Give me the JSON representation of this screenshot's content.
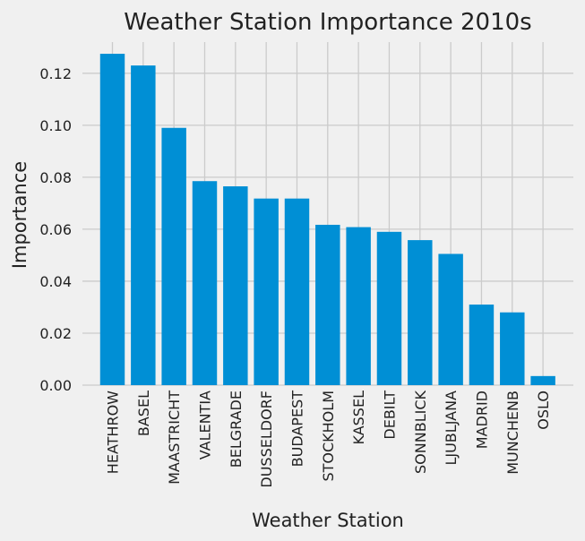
{
  "chart_data": {
    "type": "bar",
    "title": "Weather Station Importance 2010s",
    "xlabel": "Weather Station",
    "ylabel": "Importance",
    "categories": [
      "HEATHROW",
      "BASEL",
      "MAASTRICHT",
      "VALENTIA",
      "BELGRADE",
      "DUSSELDORF",
      "BUDAPEST",
      "STOCKHOLM",
      "KASSEL",
      "DEBILT",
      "SONNBLICK",
      "LJUBLJANA",
      "MADRID",
      "MUNCHENB",
      "OSLO"
    ],
    "values": [
      0.1275,
      0.123,
      0.099,
      0.0785,
      0.0765,
      0.0718,
      0.0718,
      0.0617,
      0.0608,
      0.059,
      0.0558,
      0.0505,
      0.031,
      0.028,
      0.0035
    ],
    "ylim": [
      0,
      0.132
    ],
    "yticks": [
      0.0,
      0.02,
      0.04,
      0.06,
      0.08,
      0.1,
      0.12
    ],
    "ytick_labels": [
      "0.00",
      "0.02",
      "0.04",
      "0.06",
      "0.08",
      "0.10",
      "0.12"
    ],
    "grid": true,
    "bar_color": "#008fd5",
    "background": "#f0f0f0",
    "grid_color": "#cbcbcb"
  }
}
